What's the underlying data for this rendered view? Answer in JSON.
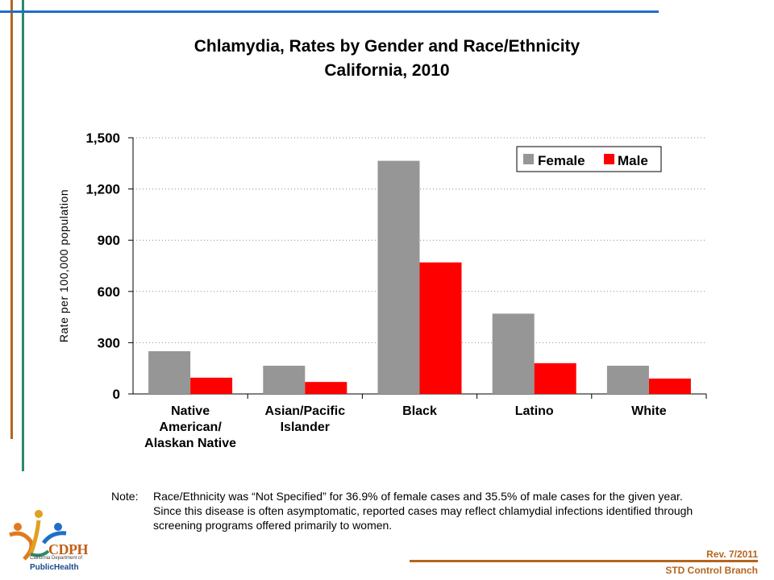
{
  "colors": {
    "female": "#969696",
    "male": "#ff0000",
    "deco_orange": "#b5651d",
    "deco_blue": "#1f6fc5",
    "deco_green": "#2a8a6a"
  },
  "note": {
    "label": "Note:",
    "text": "Race/Ethnicity was “Not Specified” for 36.9% of female cases and 35.5% of male cases for the given year.  Since this disease is often asymptomatic, reported cases may reflect chlamydial infections identified through screening programs offered primarily to women."
  },
  "footer": {
    "revision": "Rev. 7/2011",
    "branch": "STD Control Branch"
  },
  "logo": {
    "main": "CDPH",
    "sub": "California Department of",
    "public_health": "PublicHealth"
  },
  "chart_data": {
    "type": "bar",
    "title": "Chlamydia, Rates by Gender and Race/Ethnicity",
    "subtitle": "California, 2010",
    "ylabel": "Rate per 100,000 population",
    "xlabel": "",
    "ylim": [
      0,
      1500
    ],
    "yticks": [
      0,
      300,
      600,
      900,
      1200,
      1500
    ],
    "ytick_labels": [
      "0",
      "300",
      "600",
      "900",
      "1,200",
      "1,500"
    ],
    "grid": "horizontal dotted",
    "legend_position": "top-right",
    "categories": [
      [
        "Native",
        "American/",
        "Alaskan Native"
      ],
      [
        "Asian/Pacific",
        "Islander"
      ],
      [
        "Black"
      ],
      [
        "Latino"
      ],
      [
        "White"
      ]
    ],
    "series": [
      {
        "name": "Female",
        "values": [
          250,
          165,
          1365,
          470,
          165
        ]
      },
      {
        "name": "Male",
        "values": [
          95,
          70,
          770,
          180,
          90
        ]
      }
    ]
  }
}
